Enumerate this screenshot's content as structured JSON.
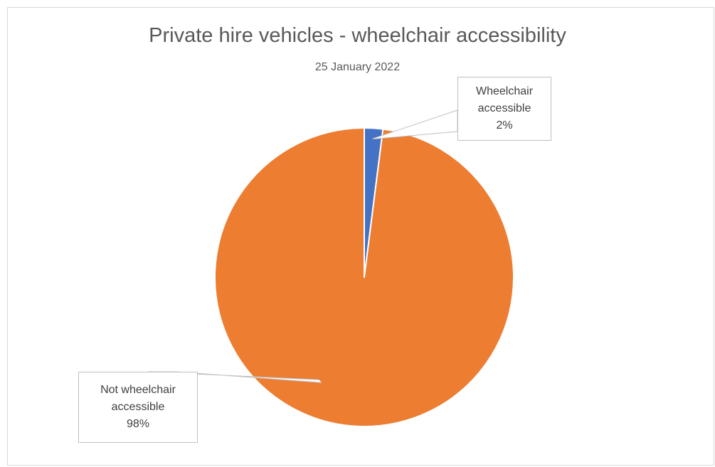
{
  "chart_data": {
    "type": "pie",
    "title": "Private hire vehicles - wheelchair accessibility",
    "subtitle": "25 January 2022",
    "slices": [
      {
        "name": "Wheelchair accessible",
        "label_line1": "Wheelchair",
        "label_line2": "accessible",
        "value": 2,
        "percent_label": "2%",
        "color": "#4472C4"
      },
      {
        "name": "Not wheelchair accessible",
        "label_line1": "Not wheelchair",
        "label_line2": "accessible",
        "value": 98,
        "percent_label": "98%",
        "color": "#ED7D31"
      }
    ],
    "start_angle_deg": 0,
    "legend": "none"
  }
}
